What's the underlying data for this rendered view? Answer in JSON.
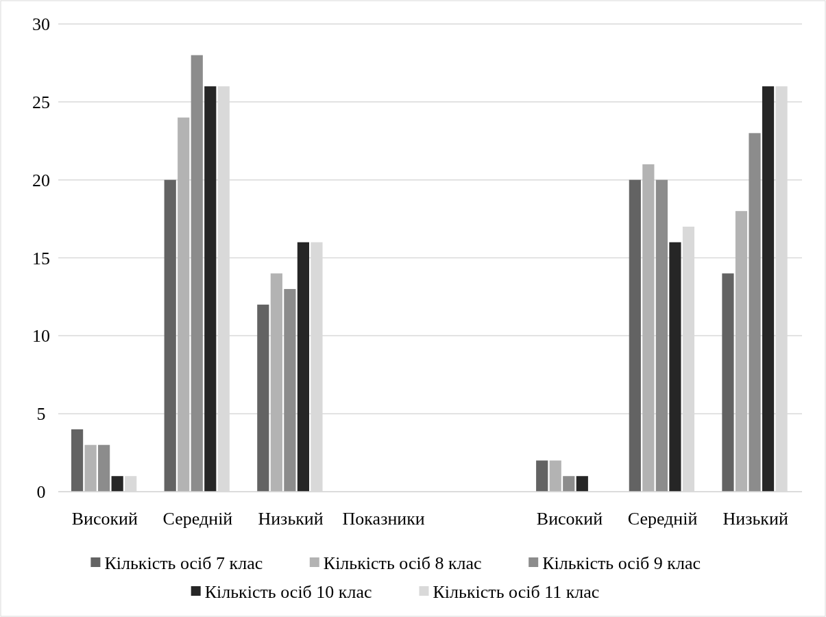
{
  "chart_data": {
    "type": "bar",
    "categories": [
      "Високий",
      "Середній",
      "Низький",
      "Показники",
      null,
      "Високий",
      "Середній",
      "Низький"
    ],
    "series": [
      {
        "name": "Кількість осіб 7 клас",
        "color": "#636363",
        "values": [
          4,
          20,
          12,
          null,
          null,
          2,
          20,
          14
        ]
      },
      {
        "name": "Кількість осіб 8 клас",
        "color": "#b3b3b3",
        "values": [
          3,
          24,
          14,
          null,
          null,
          2,
          21,
          18
        ]
      },
      {
        "name": "Кількість осіб 9 клас",
        "color": "#8c8c8c",
        "values": [
          3,
          28,
          13,
          null,
          null,
          1,
          20,
          23
        ]
      },
      {
        "name": "Кількість осіб 10 клас",
        "color": "#262626",
        "values": [
          1,
          26,
          16,
          null,
          null,
          1,
          16,
          26
        ]
      },
      {
        "name": "Кількість осіб 11 клас",
        "color": "#d9d9d9",
        "values": [
          1,
          26,
          16,
          null,
          null,
          0,
          17,
          26
        ]
      }
    ],
    "ylim": [
      0,
      30
    ],
    "yticks": [
      0,
      5,
      10,
      15,
      20,
      25,
      30
    ],
    "grid": "y",
    "legend": "bottom"
  }
}
